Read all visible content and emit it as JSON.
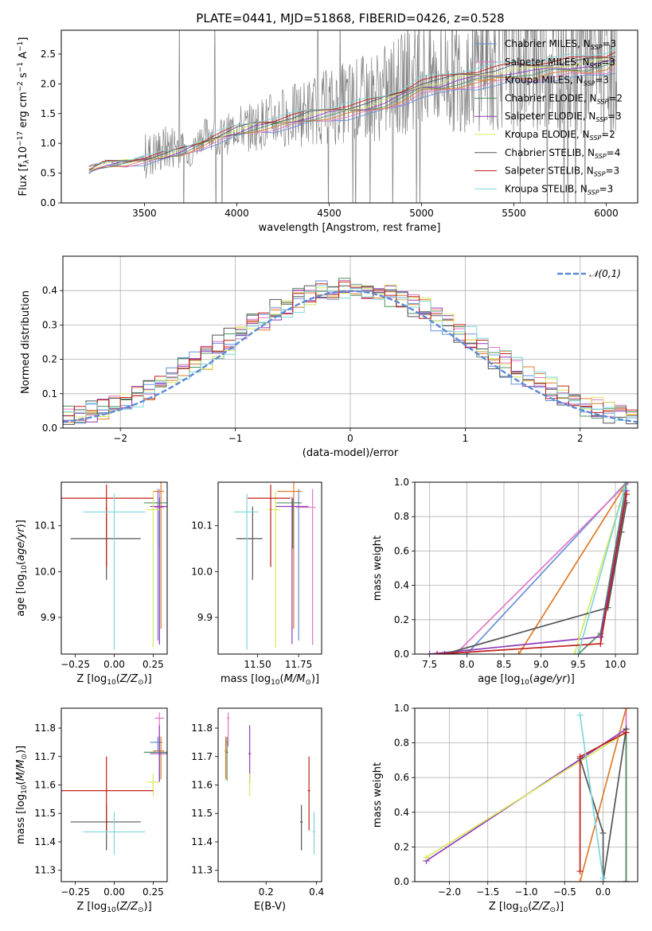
{
  "figure": {
    "title": "PLATE=0441, MJD=51868, FIBERID=0426, z=0.528"
  },
  "models": [
    {
      "name": "Chabrier MILES, N$_{SSP}$=3",
      "label": "Chabrier MILES, N_SSP=3",
      "color": "#6a8fd8"
    },
    {
      "name": "Salpeter MILES, N_SSP=3",
      "label": "Salpeter MILES, N_SSP=3",
      "color": "#e377c2"
    },
    {
      "name": "Kroupa MILES, N_SSP=3",
      "label": "Kroupa MILES, N_SSP=3",
      "color": "#e07b2a"
    },
    {
      "name": "Chabrier ELODIE, N_SSP=2",
      "label": "Chabrier ELODIE, N_SSP=2",
      "color": "#4f8f5f"
    },
    {
      "name": "Salpeter ELODIE, N_SSP=3",
      "label": "Salpeter ELODIE, N_SSP=3",
      "color": "#8e3bb8"
    },
    {
      "name": "Kroupa ELODIE, N_SSP=2",
      "label": "Kroupa ELODIE, N_SSP=2",
      "color": "#d9e860"
    },
    {
      "name": "Chabrier STELIB, N_SSP=4",
      "label": "Chabrier STELIB, N_SSP=4",
      "color": "#555555"
    },
    {
      "name": "Salpeter STELIB, N_SSP=3",
      "label": "Salpeter STELIB, N_SSP=3",
      "color": "#c0201a"
    },
    {
      "name": "Kroupa STELIB, N_SSP=3",
      "label": "Kroupa STELIB, N_SSP=3",
      "color": "#7fd6dc"
    }
  ],
  "chart_data": [
    {
      "id": "spectrum",
      "type": "line",
      "title": "PLATE=0441, MJD=51868, FIBERID=0426, z=0.528",
      "xlabel": "wavelength [Angstrom, rest frame]",
      "ylabel": "Flux [f_λ 10^-17 erg cm^-2 s^-1 A^-1]",
      "xlim": [
        3050,
        6170
      ],
      "ylim": [
        0,
        2.9
      ],
      "xticks": [
        3500,
        4000,
        4500,
        5000,
        5500,
        6000
      ],
      "yticks": [
        0.0,
        0.5,
        1.0,
        1.5,
        2.0,
        2.5
      ],
      "data_series": {
        "name": "data",
        "color": "#808080",
        "x": [
          3200,
          3230,
          3260,
          3300,
          3350,
          3400,
          3450,
          3480,
          3520,
          3560,
          3600,
          3650,
          3700,
          3750,
          3800,
          3850,
          3900,
          3950,
          4000,
          4050,
          4100,
          4150,
          4200,
          4250,
          4300,
          4350,
          4400,
          4450,
          4500,
          4550,
          4600,
          4650,
          4700,
          4750,
          4800,
          4850,
          4900,
          4950,
          5000,
          5050,
          5100,
          5150,
          5200,
          5250,
          5300,
          5350,
          5400,
          5450,
          5500,
          5550,
          5600,
          5650,
          5700,
          5750,
          5800,
          5850,
          5900,
          5950,
          6000,
          6050
        ],
        "y": [
          0.5,
          0.62,
          0.68,
          0.7,
          0.66,
          0.7,
          0.72,
          0.75,
          0.8,
          0.85,
          0.9,
          0.95,
          1.0,
          0.8,
          1.1,
          1.2,
          1.1,
          1.15,
          1.3,
          1.25,
          1.3,
          1.35,
          1.4,
          1.45,
          1.45,
          1.5,
          1.55,
          1.6,
          1.6,
          1.65,
          1.7,
          1.72,
          1.75,
          1.8,
          1.85,
          1.9,
          2.0,
          2.1,
          2.2,
          2.1,
          2.2,
          2.15,
          2.2,
          2.25,
          2.3,
          2.35,
          2.3,
          2.4,
          2.35,
          2.4,
          2.45,
          2.4,
          2.5,
          2.45,
          2.5,
          2.55,
          2.5,
          2.6,
          2.55,
          2.6
        ]
      },
      "model_x": [
        3200,
        3300,
        3400,
        3500,
        3600,
        3700,
        3800,
        3900,
        4000,
        4100,
        4200,
        4300,
        4400,
        4500,
        4600,
        4700,
        4800,
        4900,
        5000,
        5100,
        5200,
        5300,
        5400,
        5500,
        5600,
        5700,
        5800,
        5900,
        6000,
        6050
      ],
      "model_y": [
        0.55,
        0.65,
        0.68,
        0.72,
        0.78,
        0.86,
        0.98,
        1.1,
        1.2,
        1.28,
        1.32,
        1.38,
        1.45,
        1.5,
        1.55,
        1.6,
        1.68,
        1.8,
        1.95,
        1.98,
        2.05,
        2.1,
        2.15,
        2.2,
        2.2,
        2.25,
        2.28,
        2.3,
        2.35,
        2.4
      ]
    },
    {
      "id": "residuals",
      "type": "bar",
      "xlabel": "(data-model)/error",
      "ylabel": "Normed distribution",
      "xlim": [
        -2.5,
        2.5
      ],
      "ylim": [
        0,
        0.5
      ],
      "xticks": [
        -2,
        -1,
        0,
        1,
        2
      ],
      "yticks": [
        0.0,
        0.1,
        0.2,
        0.3,
        0.4
      ],
      "legend": "$\\mathcal{N}(0,1)$",
      "legend_text": "𝒩(0,1)",
      "bins": [
        -2.5,
        -2.4,
        -2.3,
        -2.2,
        -2.1,
        -2.0,
        -1.9,
        -1.8,
        -1.7,
        -1.6,
        -1.5,
        -1.4,
        -1.3,
        -1.2,
        -1.1,
        -1.0,
        -0.9,
        -0.8,
        -0.7,
        -0.6,
        -0.5,
        -0.4,
        -0.3,
        -0.2,
        -0.1,
        0.0,
        0.1,
        0.2,
        0.3,
        0.4,
        0.5,
        0.6,
        0.7,
        0.8,
        0.9,
        1.0,
        1.1,
        1.2,
        1.3,
        1.4,
        1.5,
        1.6,
        1.7,
        1.8,
        1.9,
        2.0,
        2.1,
        2.2,
        2.3,
        2.4,
        2.5
      ]
    },
    {
      "id": "age_vs_Z",
      "type": "scatter",
      "xlabel": "Z [log10(Z/Z⊙)]",
      "ylabel": "age [log10(age/yr)]",
      "xlim": [
        -0.34,
        0.34
      ],
      "ylim": [
        9.82,
        10.195
      ],
      "xticks": [
        -0.25,
        0.0,
        0.25
      ],
      "yticks": [
        9.9,
        10.0,
        10.1
      ]
    },
    {
      "id": "age_vs_mass",
      "type": "scatter",
      "xlabel": "mass [log10(M/M⊙)]",
      "ylabel": "",
      "xlim": [
        11.26,
        11.89
      ],
      "ylim": [
        9.82,
        10.195
      ],
      "xticks": [
        11.5,
        11.75
      ],
      "yticks": [
        9.9,
        10.0,
        10.1
      ]
    },
    {
      "id": "weight_vs_age",
      "type": "line",
      "xlabel": "age [log10(age/yr)]",
      "ylabel": "mass weight",
      "xlim": [
        7.3,
        10.3
      ],
      "ylim": [
        0,
        1.0
      ],
      "xticks": [
        7.5,
        8.0,
        8.5,
        9.0,
        9.5,
        10.0
      ],
      "yticks": [
        0.0,
        0.2,
        0.4,
        0.6,
        0.8,
        1.0
      ]
    },
    {
      "id": "mass_vs_Z",
      "type": "scatter",
      "xlabel": "Z [log10(Z/Z⊙)]",
      "ylabel": "mass [log10(M/M⊙)]",
      "xlim": [
        -0.34,
        0.34
      ],
      "ylim": [
        11.26,
        11.87
      ],
      "xticks": [
        -0.25,
        0.0,
        0.25
      ],
      "yticks": [
        11.3,
        11.4,
        11.5,
        11.6,
        11.7,
        11.8
      ]
    },
    {
      "id": "mass_vs_ebv",
      "type": "scatter",
      "xlabel": "E(B-V)",
      "ylabel": "",
      "xlim": [
        0.01,
        0.42
      ],
      "ylim": [
        11.26,
        11.87
      ],
      "xticks": [
        0.2,
        0.4
      ],
      "yticks": [
        11.3,
        11.4,
        11.5,
        11.6,
        11.7,
        11.8
      ]
    },
    {
      "id": "weight_vs_Z",
      "type": "line",
      "xlabel": "Z [log10(Z/Z⊙)]",
      "ylabel": "mass weight",
      "xlim": [
        -2.45,
        0.45
      ],
      "ylim": [
        0,
        1.0
      ],
      "xticks": [
        -2.0,
        -1.5,
        -1.0,
        -0.5,
        0.0
      ],
      "yticks": [
        0.0,
        0.2,
        0.4,
        0.6,
        0.8,
        1.0
      ]
    }
  ],
  "tick_labels": {
    "spectrum_x": [
      "3500",
      "4000",
      "4500",
      "5000",
      "5500",
      "6000"
    ],
    "spectrum_y": [
      "0.0",
      "0.5",
      "1.0",
      "1.5",
      "2.0",
      "2.5"
    ],
    "resid_x": [
      "−2",
      "−1",
      "0",
      "1",
      "2"
    ],
    "resid_y": [
      "0.0",
      "0.1",
      "0.2",
      "0.3",
      "0.4"
    ],
    "ageZ_x": [
      "−0.25",
      "0.00",
      "0.25"
    ],
    "age_y": [
      "9.9",
      "10.0",
      "10.1"
    ],
    "mass_x": [
      "11.50",
      "11.75"
    ],
    "wage_x": [
      "7.5",
      "8.0",
      "8.5",
      "9.0",
      "9.5",
      "10.0"
    ],
    "w_y": [
      "0.0",
      "0.2",
      "0.4",
      "0.6",
      "0.8",
      "1.0"
    ],
    "mass_y": [
      "11.3",
      "11.4",
      "11.5",
      "11.6",
      "11.7",
      "11.8"
    ],
    "ebv_x": [
      "0.2",
      "0.4"
    ],
    "wZ_x": [
      "−2.0",
      "−1.5",
      "−1.0",
      "−0.5",
      "0.0"
    ]
  },
  "axis_labels": {
    "spectrum_x": "wavelength [Angstrom, rest frame]",
    "resid_x": "(data-model)/error",
    "resid_y": "Normed distribution",
    "w_y": "mass weight",
    "ebv_x": "E(B-V)"
  }
}
